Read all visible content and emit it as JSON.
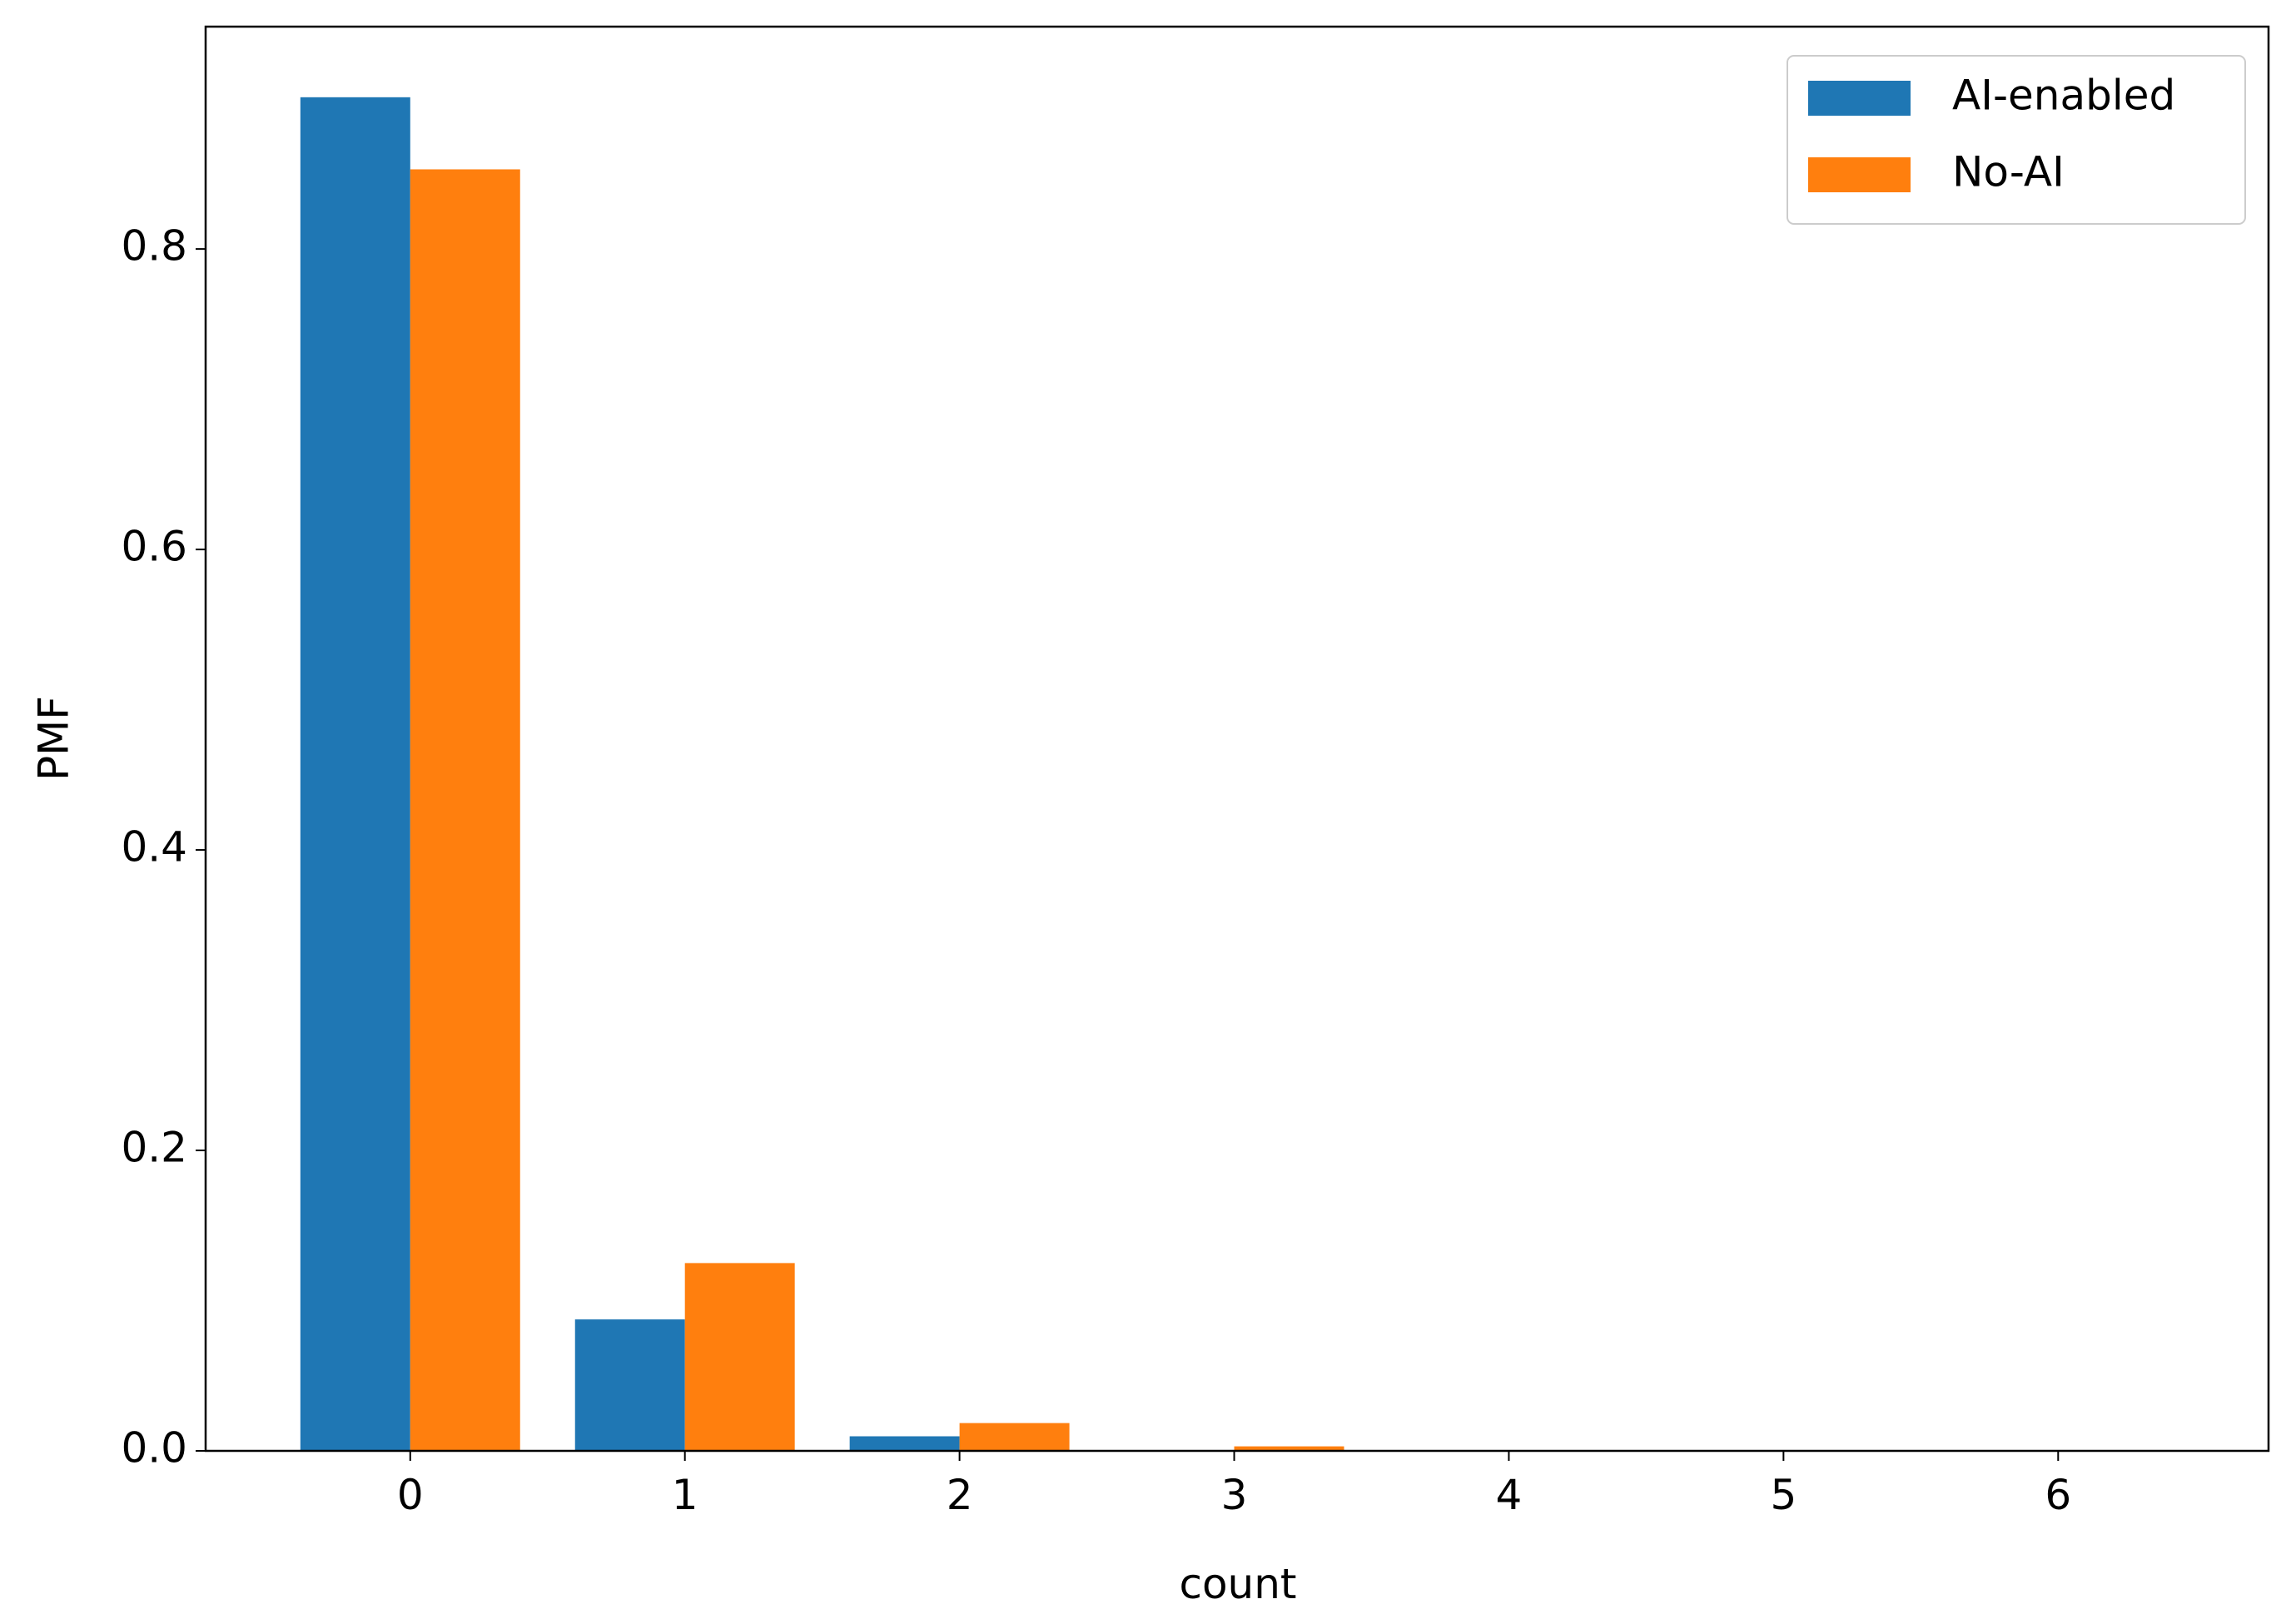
{
  "chart_data": {
    "type": "bar",
    "x": [
      0,
      1,
      2,
      3,
      4,
      5,
      6
    ],
    "series": [
      {
        "name": "AI-enabled",
        "color": "#1f77b4",
        "values": [
          0.901,
          0.0875,
          0.0097,
          0.0005,
          0,
          0,
          0
        ]
      },
      {
        "name": "No-AI",
        "color": "#ff7f0e",
        "values": [
          0.853,
          0.125,
          0.0185,
          0.003,
          0,
          0,
          0
        ]
      }
    ],
    "xlabel": "count",
    "ylabel": "PMF",
    "xlim": [
      -0.745,
      6.766
    ],
    "ylim": [
      0,
      0.948
    ],
    "xticks": [
      0,
      1,
      2,
      3,
      4,
      5,
      6
    ],
    "yticks": [
      {
        "value": 0,
        "label": "0.0"
      },
      0.2,
      0.4,
      0.6,
      0.8
    ],
    "grid": false,
    "legend": "upper right"
  }
}
